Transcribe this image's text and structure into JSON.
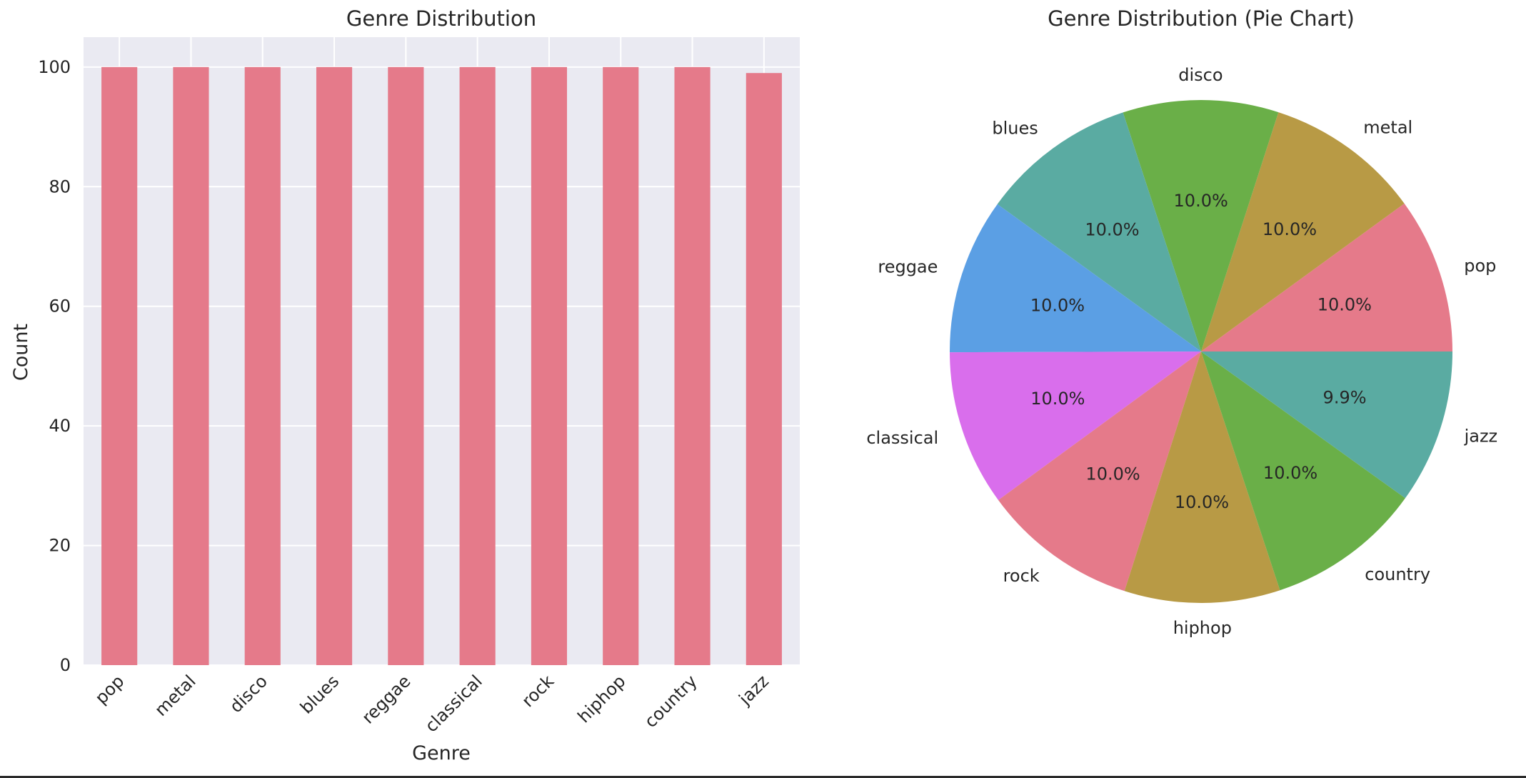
{
  "chart_data": [
    {
      "type": "bar",
      "title": "Genre Distribution",
      "xlabel": "Genre",
      "ylabel": "Count",
      "categories": [
        "pop",
        "metal",
        "disco",
        "blues",
        "reggae",
        "classical",
        "rock",
        "hiphop",
        "country",
        "jazz"
      ],
      "values": [
        100,
        100,
        100,
        100,
        100,
        100,
        100,
        100,
        100,
        99
      ],
      "ylim": [
        0,
        105
      ],
      "yticks": [
        0,
        20,
        40,
        60,
        80,
        100
      ],
      "grid": true,
      "bar_color": "#e57a8a",
      "background_color": "#eaeaf2"
    },
    {
      "type": "pie",
      "title": "Genre Distribution (Pie Chart)",
      "slices": [
        {
          "label": "pop",
          "value": 100,
          "pct_label": "10.0%",
          "color": "#e57a8a"
        },
        {
          "label": "metal",
          "value": 100,
          "pct_label": "10.0%",
          "color": "#b89a45"
        },
        {
          "label": "disco",
          "value": 100,
          "pct_label": "10.0%",
          "color": "#6aaf48"
        },
        {
          "label": "blues",
          "value": 100,
          "pct_label": "10.0%",
          "color": "#5aaba2"
        },
        {
          "label": "reggae",
          "value": 100,
          "pct_label": "10.0%",
          "color": "#5b9fe4"
        },
        {
          "label": "classical",
          "value": 100,
          "pct_label": "10.0%",
          "color": "#d96eec"
        },
        {
          "label": "rock",
          "value": 100,
          "pct_label": "10.0%",
          "color": "#e57a8a"
        },
        {
          "label": "hiphop",
          "value": 100,
          "pct_label": "10.0%",
          "color": "#b89a45"
        },
        {
          "label": "country",
          "value": 100,
          "pct_label": "10.0%",
          "color": "#6aaf48"
        },
        {
          "label": "jazz",
          "value": 99,
          "pct_label": "9.9%",
          "color": "#5aaba2"
        }
      ]
    }
  ]
}
